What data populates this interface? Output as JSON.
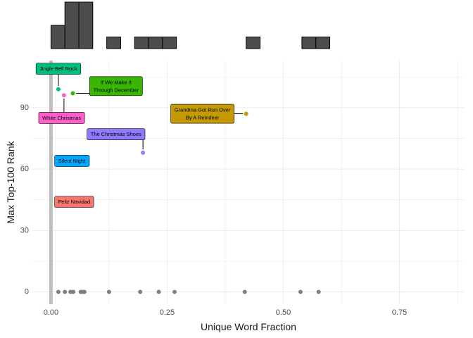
{
  "chart_data": [
    {
      "type": "histogram",
      "panel": "top-marginal",
      "bins": [
        {
          "x0": 0.0,
          "x1": 0.03,
          "count": 2
        },
        {
          "x0": 0.03,
          "x1": 0.06,
          "count": 4
        },
        {
          "x0": 0.06,
          "x1": 0.09,
          "count": 4
        },
        {
          "x0": 0.09,
          "x1": 0.12,
          "count": 0
        },
        {
          "x0": 0.12,
          "x1": 0.15,
          "count": 1
        },
        {
          "x0": 0.15,
          "x1": 0.18,
          "count": 0
        },
        {
          "x0": 0.18,
          "x1": 0.21,
          "count": 1
        },
        {
          "x0": 0.21,
          "x1": 0.24,
          "count": 1
        },
        {
          "x0": 0.24,
          "x1": 0.27,
          "count": 1
        },
        {
          "x0": 0.27,
          "x1": 0.3,
          "count": 0
        },
        {
          "x0": 0.3,
          "x1": 0.33,
          "count": 0
        },
        {
          "x0": 0.33,
          "x1": 0.36,
          "count": 0
        },
        {
          "x0": 0.36,
          "x1": 0.39,
          "count": 0
        },
        {
          "x0": 0.39,
          "x1": 0.42,
          "count": 0
        },
        {
          "x0": 0.42,
          "x1": 0.45,
          "count": 1
        },
        {
          "x0": 0.45,
          "x1": 0.48,
          "count": 0
        },
        {
          "x0": 0.48,
          "x1": 0.51,
          "count": 0
        },
        {
          "x0": 0.51,
          "x1": 0.54,
          "count": 0
        },
        {
          "x0": 0.54,
          "x1": 0.57,
          "count": 1
        },
        {
          "x0": 0.57,
          "x1": 0.6,
          "count": 1
        },
        {
          "x0": 0.6,
          "x1": 0.63,
          "count": 0
        },
        {
          "x0": 0.63,
          "x1": 0.66,
          "count": 0
        },
        {
          "x0": 0.66,
          "x1": 0.69,
          "count": 0
        },
        {
          "x0": 0.69,
          "x1": 0.72,
          "count": 0
        },
        {
          "x0": 0.72,
          "x1": 0.75,
          "count": 0
        },
        {
          "x0": 0.75,
          "x1": 0.78,
          "count": 0
        },
        {
          "x0": 0.78,
          "x1": 0.81,
          "count": 0
        },
        {
          "x0": 0.81,
          "x1": 0.84,
          "count": 0
        },
        {
          "x0": 0.84,
          "x1": 0.87,
          "count": 0
        }
      ],
      "bar_fill": "#4d4d4d",
      "bar_stroke": "#000000"
    },
    {
      "type": "scatter",
      "panel": "main",
      "xlabel": "Unique Word Fraction",
      "ylabel": "Max Top-100 Rank",
      "xlim": [
        -0.04,
        0.89
      ],
      "ylim": [
        -6,
        113
      ],
      "xticks": [
        0.0,
        0.25,
        0.5,
        0.75
      ],
      "xtick_labels": [
        "0.00",
        "0.25",
        "0.50",
        "0.75"
      ],
      "yticks": [
        0,
        30,
        60,
        90
      ],
      "ytick_labels": [
        "0",
        "30",
        "60",
        "90"
      ],
      "grid": true,
      "legend": "none",
      "reference_line": {
        "x": 0.0,
        "color": "#bebebe"
      },
      "points": [
        {
          "x": 0.085,
          "y": 44,
          "color": "#F8766D"
        },
        {
          "x": 0.062,
          "y": 64,
          "color": "#00A9FF"
        },
        {
          "x": 0.028,
          "y": 96,
          "color": "#FF61CC"
        },
        {
          "x": 0.016,
          "y": 99,
          "color": "#00BF7D"
        },
        {
          "x": 0.047,
          "y": 97,
          "color": "#39B600"
        },
        {
          "x": 0.198,
          "y": 68,
          "color": "#8F7BFF"
        },
        {
          "x": 0.42,
          "y": 87,
          "color": "#C49A00"
        },
        {
          "x": 0.016,
          "y": 0,
          "color": "#808080"
        },
        {
          "x": 0.03,
          "y": 0,
          "color": "#808080"
        },
        {
          "x": 0.042,
          "y": 0,
          "color": "#808080"
        },
        {
          "x": 0.048,
          "y": 0,
          "color": "#808080"
        },
        {
          "x": 0.064,
          "y": 0,
          "color": "#808080"
        },
        {
          "x": 0.068,
          "y": 0,
          "color": "#808080"
        },
        {
          "x": 0.072,
          "y": 0,
          "color": "#808080"
        },
        {
          "x": 0.125,
          "y": 0,
          "color": "#808080"
        },
        {
          "x": 0.192,
          "y": 0,
          "color": "#808080"
        },
        {
          "x": 0.232,
          "y": 0,
          "color": "#808080"
        },
        {
          "x": 0.266,
          "y": 0,
          "color": "#808080"
        },
        {
          "x": 0.417,
          "y": 0,
          "color": "#808080"
        },
        {
          "x": 0.537,
          "y": 0,
          "color": "#808080"
        },
        {
          "x": 0.576,
          "y": 0,
          "color": "#808080"
        }
      ],
      "annotations": [
        {
          "lines": [
            "Feliz Navidad"
          ],
          "color": "#F8766D",
          "target": [
            0.085,
            44
          ],
          "label_at": [
            0.008,
            44
          ],
          "anchor": "start"
        },
        {
          "lines": [
            "Silent Night"
          ],
          "color": "#00A9FF",
          "target": [
            0.062,
            64
          ],
          "label_at": [
            0.008,
            64
          ],
          "anchor": "start"
        },
        {
          "lines": [
            "White Christmas"
          ],
          "color": "#FF61CC",
          "target": [
            0.028,
            96
          ],
          "label_at": [
            0.023,
            85
          ],
          "anchor": "middle"
        },
        {
          "lines": [
            "Jingle Bell Rock"
          ],
          "color": "#00BF7D",
          "target": [
            0.016,
            99
          ],
          "label_at": [
            0.016,
            109
          ],
          "anchor": "middle"
        },
        {
          "lines": [
            "If We Make It",
            "Through December"
          ],
          "color": "#39B600",
          "target": [
            0.047,
            97
          ],
          "label_at": [
            0.14,
            100.5
          ],
          "anchor": "middle"
        },
        {
          "lines": [
            "The Christmas Shoes"
          ],
          "color": "#8F7BFF",
          "target": [
            0.198,
            68
          ],
          "label_at": [
            0.14,
            77
          ],
          "anchor": "middle"
        },
        {
          "lines": [
            "Grandma Got Run Over",
            "By A Reindeer"
          ],
          "color": "#C49A00",
          "target": [
            0.42,
            87
          ],
          "label_at": [
            0.326,
            87
          ],
          "anchor": "middle"
        }
      ]
    }
  ]
}
